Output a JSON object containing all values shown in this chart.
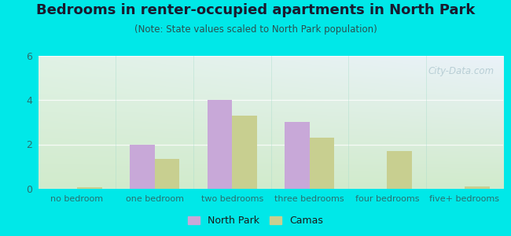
{
  "title": "Bedrooms in renter-occupied apartments in North Park",
  "subtitle": "(Note: State values scaled to North Park population)",
  "categories": [
    "no bedroom",
    "one bedroom",
    "two bedrooms",
    "three bedrooms",
    "four bedrooms",
    "five+ bedrooms"
  ],
  "north_park": [
    0.0,
    2.0,
    4.0,
    3.0,
    0.0,
    0.0
  ],
  "camas": [
    0.07,
    1.35,
    3.3,
    2.3,
    1.7,
    0.1
  ],
  "north_park_color": "#c8a8d8",
  "camas_color": "#c8cf90",
  "ylim": [
    0,
    6
  ],
  "yticks": [
    0,
    2,
    4,
    6
  ],
  "background_outer": "#00e8e8",
  "background_plot_topleft": "#d8ece0",
  "background_plot_topright": "#ddeef8",
  "background_plot_bottom": "#d0e8d0",
  "watermark": "City-Data.com",
  "bar_width": 0.32,
  "legend_labels": [
    "North Park",
    "Camas"
  ],
  "title_fontsize": 13,
  "subtitle_fontsize": 8.5,
  "tick_fontsize": 8,
  "ytick_fontsize": 9
}
